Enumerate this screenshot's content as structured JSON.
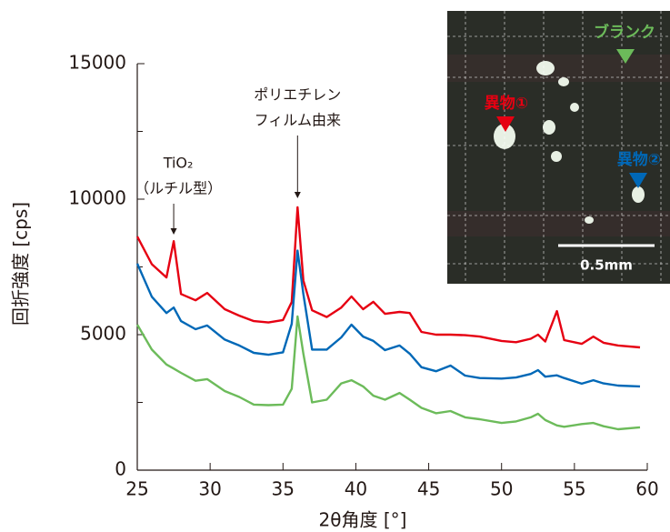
{
  "chart_data": {
    "type": "line",
    "xlabel": "2θ角度 [°]",
    "ylabel": "回折強度 [cps]",
    "x": [
      25,
      26,
      27,
      27.5,
      28,
      29,
      29.8,
      31,
      32,
      33,
      34,
      35,
      35.6,
      36,
      36.4,
      37,
      38,
      39,
      39.7,
      40.5,
      41.2,
      42,
      43,
      43.7,
      44.5,
      45.5,
      46.5,
      47.5,
      48.5,
      50,
      51,
      52,
      52.5,
      53,
      53.8,
      54.3,
      55.5,
      56.3,
      57,
      58,
      59.5
    ],
    "series": [
      {
        "color": "#e60012",
        "values": [
          8620,
          7600,
          7110,
          8450,
          6500,
          6270,
          6540,
          5940,
          5700,
          5500,
          5450,
          5540,
          6200,
          9700,
          7000,
          5900,
          5650,
          6000,
          6410,
          5940,
          6210,
          5770,
          5840,
          5800,
          5100,
          5000,
          5000,
          4980,
          4930,
          4770,
          4720,
          4850,
          5000,
          4750,
          5870,
          4800,
          4660,
          4930,
          4700,
          4600,
          4530
        ]
      },
      {
        "color": "#0068b7",
        "values": [
          7620,
          6400,
          5800,
          6000,
          5500,
          5200,
          5340,
          4820,
          4600,
          4330,
          4260,
          4350,
          5400,
          8100,
          6500,
          4450,
          4450,
          4900,
          5370,
          4930,
          4770,
          4430,
          4600,
          4300,
          3800,
          3650,
          3860,
          3490,
          3400,
          3380,
          3420,
          3550,
          3690,
          3450,
          3500,
          3400,
          3190,
          3320,
          3200,
          3120,
          3090
        ]
      },
      {
        "color": "#6cbb5a",
        "values": [
          5370,
          4450,
          3900,
          3750,
          3590,
          3300,
          3360,
          2920,
          2700,
          2420,
          2400,
          2420,
          3000,
          5670,
          4300,
          2500,
          2600,
          3200,
          3320,
          3090,
          2750,
          2600,
          2850,
          2600,
          2300,
          2100,
          2180,
          1950,
          1880,
          1740,
          1800,
          1950,
          2080,
          1850,
          1650,
          1600,
          1700,
          1740,
          1620,
          1510,
          1580
        ]
      }
    ],
    "xlim": [
      25,
      60
    ],
    "ylim": [
      0,
      15000
    ],
    "xticks": [
      25,
      30,
      35,
      40,
      45,
      50,
      55,
      60
    ],
    "yticks": [
      0,
      5000,
      10000,
      15000
    ],
    "yticks_minor": [
      2500,
      7500,
      12500
    ],
    "annotations": [
      {
        "x": 27.5,
        "lines": [
          "TiO₂",
          "（ルチル型）"
        ]
      },
      {
        "x": 36,
        "lines": [
          "ポリエチレン",
          "フィルム由来"
        ]
      }
    ],
    "inset": {
      "labels": [
        "ブランク",
        "異物①",
        "異物②"
      ],
      "scale": "0.5mm"
    }
  }
}
